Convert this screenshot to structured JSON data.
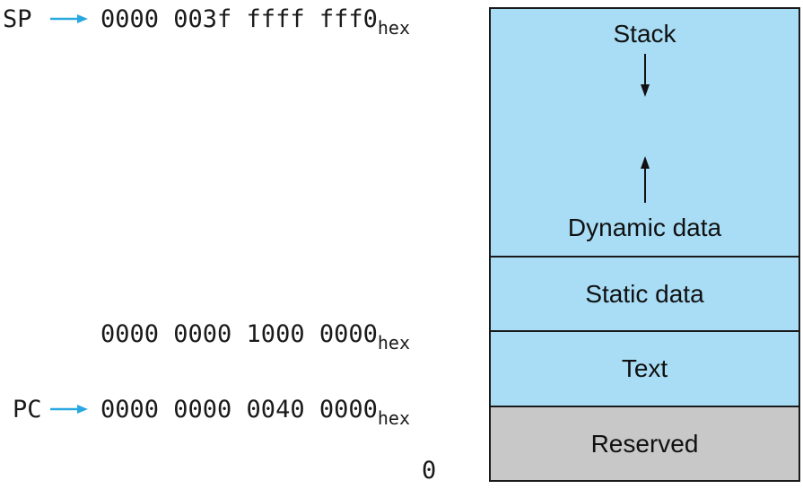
{
  "colors": {
    "segment_fill": "#A8DDF5",
    "reserved_fill": "#C8C8C8",
    "pointer_arrow": "#29A8E0",
    "outline": "#1A1A1A"
  },
  "pointers": {
    "sp": {
      "label": "SP",
      "arrow_icon": "right-arrow-icon"
    },
    "pc": {
      "label": "PC",
      "arrow_icon": "right-arrow-icon"
    }
  },
  "addresses": {
    "stack_top": {
      "value": "0000 003f ffff fff0",
      "suffix": "hex"
    },
    "static_base": {
      "value": "0000 0000 1000 0000",
      "suffix": "hex"
    },
    "text_base": {
      "value": "0000 0000 0040 0000",
      "suffix": "hex"
    },
    "zero": {
      "value": "0"
    }
  },
  "segments": {
    "stack": {
      "label": "Stack",
      "growth": "down"
    },
    "dynamic_data": {
      "label": "Dynamic data",
      "growth": "up"
    },
    "static_data": {
      "label": "Static data"
    },
    "text": {
      "label": "Text"
    },
    "reserved": {
      "label": "Reserved"
    }
  }
}
